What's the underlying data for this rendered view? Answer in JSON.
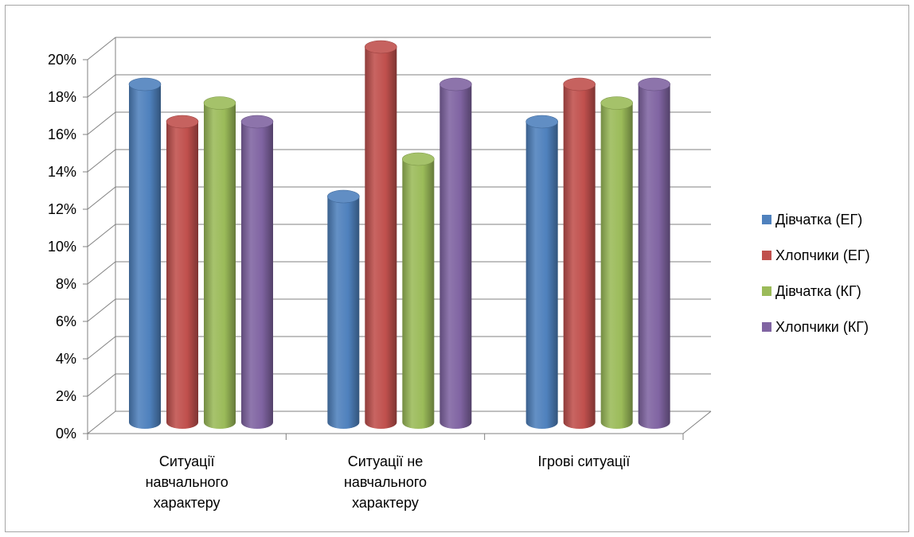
{
  "chart_data": {
    "type": "bar",
    "categories": [
      [
        "Ситуації",
        "навчального",
        "характеру"
      ],
      [
        "Ситуації не",
        "навчального",
        "характеру"
      ],
      [
        "Ігрові ситуації"
      ]
    ],
    "series": [
      {
        "name": "Дівчатка (ЕГ)",
        "color": "#4f81bd",
        "values": [
          18,
          12,
          16
        ]
      },
      {
        "name": "Хлопчики (ЕГ)",
        "color": "#c0504d",
        "values": [
          16,
          20,
          18
        ]
      },
      {
        "name": "Дівчатка (КГ)",
        "color": "#9bbb59",
        "values": [
          17,
          14,
          17
        ]
      },
      {
        "name": "Хлопчики (КГ)",
        "color": "#8064a2",
        "values": [
          16,
          18,
          18
        ]
      }
    ],
    "ylim": [
      0,
      20
    ],
    "ytick_step": 2,
    "ytick_labels": [
      "0%",
      "2%",
      "4%",
      "6%",
      "8%",
      "10%",
      "12%",
      "14%",
      "16%",
      "18%",
      "20%"
    ],
    "grid": true,
    "legend_position": "right",
    "style": "3d-cylinder"
  }
}
